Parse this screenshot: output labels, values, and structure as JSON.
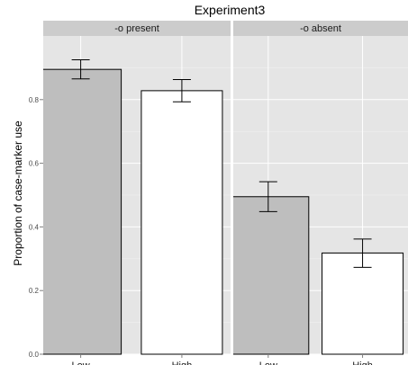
{
  "chart_data": {
    "type": "bar",
    "title": "Experiment3",
    "ylabel": "Proportion of case-marker use",
    "xlabel": "",
    "ylim": [
      0,
      1.0
    ],
    "yticks": [
      "0.0",
      "0.2",
      "0.4",
      "0.6",
      "0.8"
    ],
    "categories": [
      "Low",
      "High"
    ],
    "grid": true,
    "colors": {
      "panel_bg": "#e5e5e5",
      "strip_bg": "#cccccc",
      "grid": "#ffffff",
      "Low": "#bebebe",
      "High": "#ffffff",
      "stroke": "#000000"
    },
    "panels": [
      {
        "label": "-o present",
        "bars": [
          {
            "category": "Low",
            "value": 0.895,
            "lower": 0.865,
            "upper": 0.925
          },
          {
            "category": "High",
            "value": 0.828,
            "lower": 0.793,
            "upper": 0.863
          }
        ]
      },
      {
        "label": "-o absent",
        "bars": [
          {
            "category": "Low",
            "value": 0.495,
            "lower": 0.448,
            "upper": 0.542
          },
          {
            "category": "High",
            "value": 0.318,
            "lower": 0.273,
            "upper": 0.362
          }
        ]
      }
    ]
  }
}
